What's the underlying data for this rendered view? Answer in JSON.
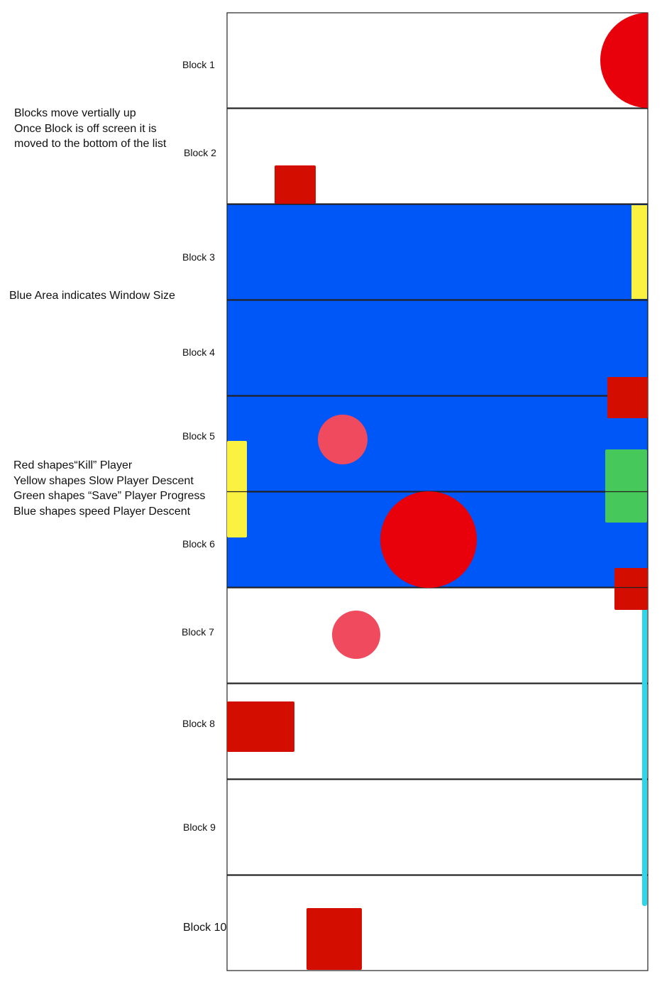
{
  "notes": {
    "movement": "Blocks move vertially up\nOnce Block is off screen it is\nmoved to the bottom of the list",
    "window": "Blue Area indicates Window Size",
    "legend": "Red shapes“Kill” Player\nYellow shapes Slow Player Descent\nGreen shapes “Save” Player Progress\nBlue shapes speed Player Descent"
  },
  "blocks": [
    {
      "label": "Block 1"
    },
    {
      "label": "Block 2"
    },
    {
      "label": "Block 3"
    },
    {
      "label": "Block 4"
    },
    {
      "label": "Block 5"
    },
    {
      "label": "Block 6"
    },
    {
      "label": "Block 7"
    },
    {
      "label": "Block 8"
    },
    {
      "label": "Block 9"
    },
    {
      "label": "Block 10"
    }
  ],
  "colors": {
    "window_area": "#0057f7",
    "kill": "#d30e00",
    "kill_circle": "#e8000a",
    "kill_light": "#f04a5e",
    "slow": "#fbf140",
    "save": "#46c95a",
    "speed": "#2ed6ea",
    "border": "#222222"
  }
}
